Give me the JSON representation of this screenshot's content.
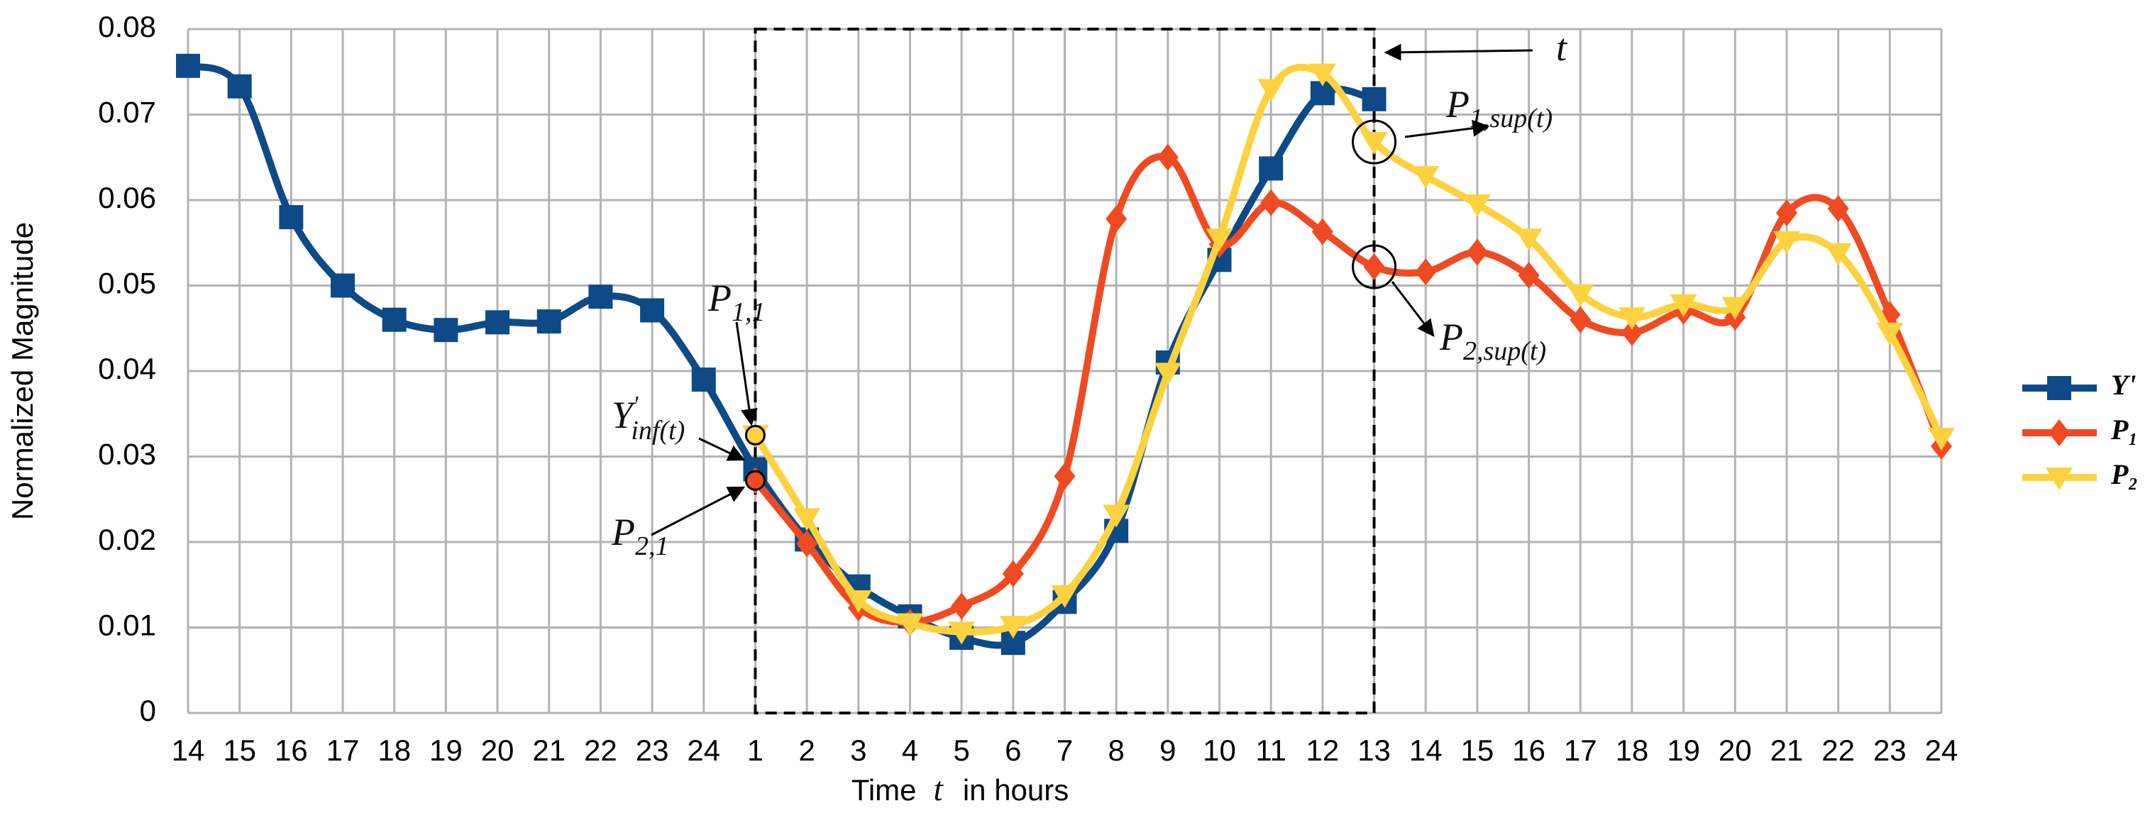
{
  "chart_data": {
    "type": "line",
    "xlabel": {
      "before": "Time",
      "var": "t",
      "after": "in hours"
    },
    "ylabel": "Normalized Magnitude",
    "categories": [
      "14",
      "15",
      "16",
      "17",
      "18",
      "19",
      "20",
      "21",
      "22",
      "23",
      "24",
      "1",
      "2",
      "3",
      "4",
      "5",
      "6",
      "7",
      "8",
      "9",
      "10",
      "11",
      "12",
      "13",
      "14",
      "15",
      "16",
      "17",
      "18",
      "19",
      "20",
      "21",
      "22",
      "23",
      "24"
    ],
    "ylim": [
      0,
      0.08
    ],
    "yticks": [
      0,
      0.01,
      0.02,
      0.03,
      0.04,
      0.05,
      0.06,
      0.07,
      0.08
    ],
    "grid": true,
    "legend": "right",
    "series": [
      {
        "name": "Y'",
        "color": "#0d4a87",
        "marker": "square",
        "values": [
          0.0757,
          0.0733,
          0.058,
          0.05,
          0.046,
          0.0448,
          0.0457,
          0.0458,
          0.0487,
          0.0471,
          0.039,
          0.0285,
          0.0203,
          0.0148,
          0.0113,
          0.0088,
          0.0082,
          0.013,
          0.0213,
          0.041,
          0.053,
          0.0637,
          0.0725,
          0.0718,
          null,
          null,
          null,
          null,
          null,
          null,
          null,
          null,
          null,
          null,
          null
        ]
      },
      {
        "name": "P₁",
        "color": "#f04a23",
        "marker": "diamond",
        "values": [
          null,
          null,
          null,
          null,
          null,
          null,
          null,
          null,
          null,
          null,
          null,
          0.0272,
          0.0198,
          0.0123,
          0.0106,
          0.0125,
          0.0163,
          0.0277,
          0.0578,
          0.065,
          0.0548,
          0.0597,
          0.0563,
          0.0522,
          0.0516,
          0.0539,
          0.0512,
          0.046,
          0.0445,
          0.047,
          0.0463,
          0.0585,
          0.059,
          0.0466,
          0.0312
        ]
      },
      {
        "name": "P₂",
        "color": "#fdd23e",
        "marker": "triangle-down",
        "values": [
          null,
          null,
          null,
          null,
          null,
          null,
          null,
          null,
          null,
          null,
          null,
          0.0325,
          0.0228,
          0.0132,
          0.0105,
          0.0095,
          0.0102,
          0.0138,
          0.0232,
          0.0398,
          0.0555,
          0.073,
          0.0748,
          0.0668,
          0.0628,
          0.0595,
          0.0555,
          0.049,
          0.0463,
          0.0478,
          0.0475,
          0.0552,
          0.0538,
          0.0445,
          0.0322
        ]
      }
    ],
    "annotations": [
      {
        "text": "t"
      },
      {
        "text": "P",
        "sub": "1,sup(t)"
      },
      {
        "text": "P",
        "sub": "2,sup(t)"
      },
      {
        "text": "P",
        "sub": "1,1"
      },
      {
        "text": "Y",
        "sup": "'",
        "sub": "inf(t)"
      },
      {
        "text": "P",
        "sub": "2,1"
      }
    ]
  }
}
